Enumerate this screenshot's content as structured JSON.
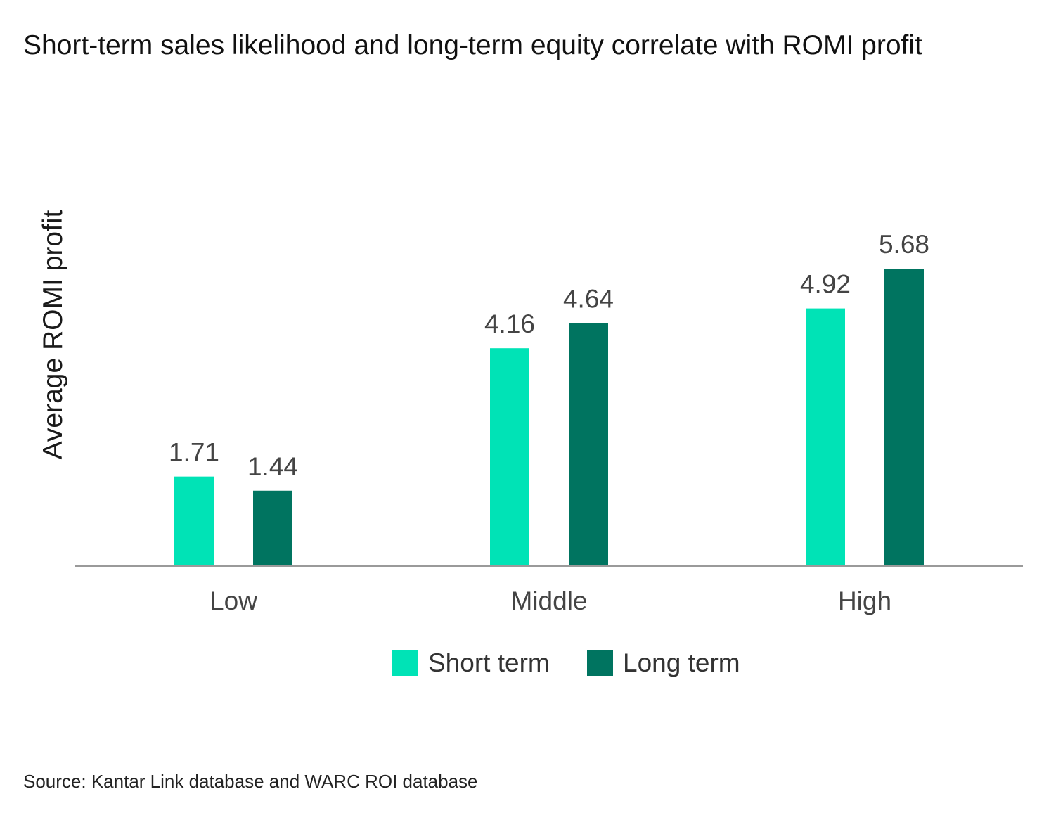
{
  "chart_data": {
    "type": "bar",
    "title": "Short-term sales likelihood and long-term equity correlate with ROMI profit",
    "ylabel": "Average ROMI profit",
    "xlabel": "",
    "categories": [
      "Low",
      "Middle",
      "High"
    ],
    "series": [
      {
        "name": "Short term",
        "values": [
          1.71,
          4.16,
          4.92
        ],
        "color": "#00E3B6"
      },
      {
        "name": "Long term",
        "values": [
          1.44,
          4.64,
          5.68
        ],
        "color": "#007460"
      }
    ],
    "ylim": [
      0,
      5.68
    ],
    "grid": false,
    "legend": "bottom-center",
    "data_labels": true
  },
  "source": "Source: Kantar Link database and WARC ROI database",
  "colors": {
    "axis": "#9a9a9a",
    "label_text": "#444444"
  }
}
